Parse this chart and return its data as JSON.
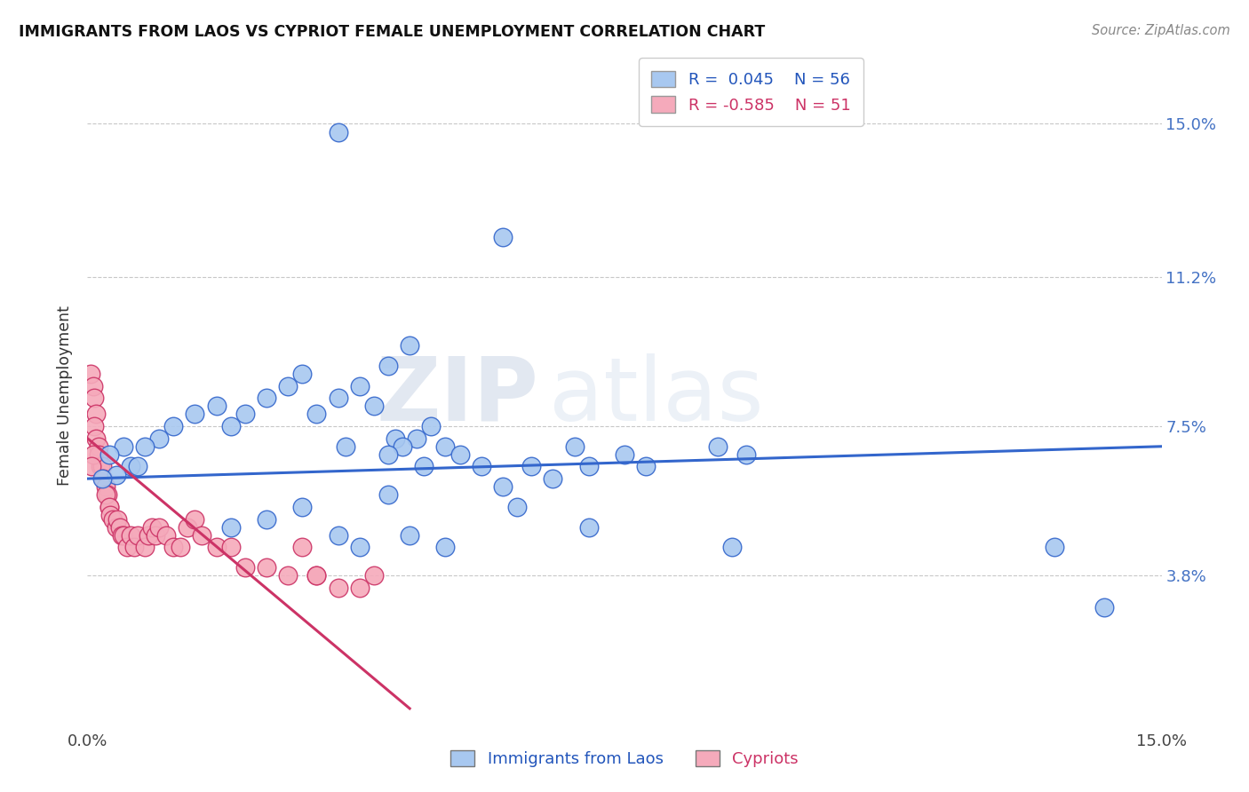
{
  "title": "IMMIGRANTS FROM LAOS VS CYPRIOT FEMALE UNEMPLOYMENT CORRELATION CHART",
  "source": "Source: ZipAtlas.com",
  "ylabel": "Female Unemployment",
  "y_tick_values": [
    3.8,
    7.5,
    11.2,
    15.0
  ],
  "x_range": [
    0,
    15
  ],
  "y_range": [
    0,
    16.5
  ],
  "legend_blue_r": "R =  0.045",
  "legend_blue_n": "N = 56",
  "legend_pink_r": "R = -0.585",
  "legend_pink_n": "N = 51",
  "blue_color": "#A8C8F0",
  "pink_color": "#F5AABB",
  "blue_line_color": "#3366CC",
  "pink_line_color": "#CC3366",
  "watermark_zip": "ZIP",
  "watermark_atlas": "atlas",
  "blue_scatter_x": [
    3.5,
    5.8,
    4.5,
    4.2,
    3.0,
    3.8,
    2.8,
    2.5,
    1.8,
    1.5,
    2.2,
    2.0,
    1.2,
    1.0,
    0.8,
    0.5,
    0.3,
    0.6,
    0.4,
    3.5,
    4.0,
    3.2,
    4.8,
    4.3,
    3.6,
    4.6,
    5.0,
    4.4,
    4.2,
    4.7,
    5.2,
    5.5,
    6.8,
    7.5,
    6.2,
    7.8,
    7.0,
    8.8,
    9.2,
    6.5,
    5.8,
    4.2,
    3.0,
    2.5,
    2.0,
    3.5,
    3.8,
    4.5,
    5.0,
    7.0,
    6.0,
    9.0,
    13.5,
    14.2,
    0.7,
    0.2
  ],
  "blue_scatter_y": [
    14.8,
    12.2,
    9.5,
    9.0,
    8.8,
    8.5,
    8.5,
    8.2,
    8.0,
    7.8,
    7.8,
    7.5,
    7.5,
    7.2,
    7.0,
    7.0,
    6.8,
    6.5,
    6.3,
    8.2,
    8.0,
    7.8,
    7.5,
    7.2,
    7.0,
    7.2,
    7.0,
    7.0,
    6.8,
    6.5,
    6.8,
    6.5,
    7.0,
    6.8,
    6.5,
    6.5,
    6.5,
    7.0,
    6.8,
    6.2,
    6.0,
    5.8,
    5.5,
    5.2,
    5.0,
    4.8,
    4.5,
    4.8,
    4.5,
    5.0,
    5.5,
    4.5,
    4.5,
    3.0,
    6.5,
    6.2
  ],
  "pink_scatter_x": [
    0.05,
    0.08,
    0.1,
    0.12,
    0.1,
    0.12,
    0.15,
    0.15,
    0.18,
    0.2,
    0.22,
    0.25,
    0.28,
    0.3,
    0.25,
    0.3,
    0.32,
    0.35,
    0.4,
    0.42,
    0.45,
    0.48,
    0.5,
    0.55,
    0.6,
    0.65,
    0.7,
    0.8,
    0.85,
    0.9,
    0.95,
    1.0,
    1.1,
    1.2,
    1.3,
    1.4,
    1.5,
    1.6,
    1.8,
    2.0,
    2.2,
    2.5,
    2.8,
    3.0,
    3.2,
    3.5,
    4.0,
    3.8,
    0.08,
    0.06,
    3.2
  ],
  "pink_scatter_y": [
    8.8,
    8.5,
    8.2,
    7.8,
    7.5,
    7.2,
    7.0,
    6.8,
    6.5,
    6.5,
    6.2,
    6.0,
    5.8,
    5.5,
    5.8,
    5.5,
    5.3,
    5.2,
    5.0,
    5.2,
    5.0,
    4.8,
    4.8,
    4.5,
    4.8,
    4.5,
    4.8,
    4.5,
    4.8,
    5.0,
    4.8,
    5.0,
    4.8,
    4.5,
    4.5,
    5.0,
    5.2,
    4.8,
    4.5,
    4.5,
    4.0,
    4.0,
    3.8,
    4.5,
    3.8,
    3.5,
    3.8,
    3.5,
    6.8,
    6.5,
    3.8
  ],
  "blue_trend_x": [
    0,
    15
  ],
  "blue_trend_y": [
    6.2,
    7.0
  ],
  "pink_trend_x": [
    0,
    4.5
  ],
  "pink_trend_y": [
    7.2,
    0.5
  ]
}
